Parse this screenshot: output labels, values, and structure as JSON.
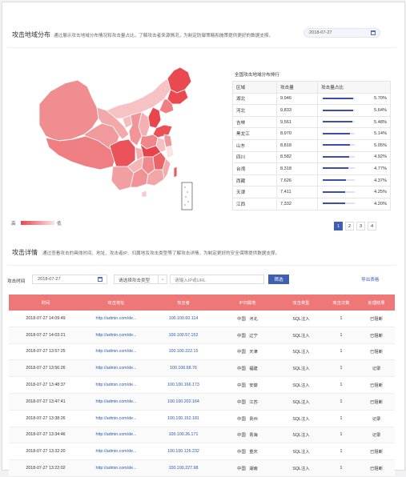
{
  "region_section": {
    "title": "攻击地域分布",
    "desc": "通过展示攻击地域分布情况和攻击量占比，了解攻击者来源情况，为制定防御策略和施策提供更好的数据支撑。",
    "date": "2018-07-27",
    "legend_high": "高",
    "legend_low": "低",
    "rank_title": "全国攻击地域分布排行",
    "columns": [
      "区域",
      "攻击量",
      "攻击量占比"
    ],
    "rows": [
      {
        "region": "湖北",
        "count": "9,946",
        "pct": "5.70%",
        "share": 0.057
      },
      {
        "region": "河北",
        "count": "9,833",
        "pct": "5.64%",
        "share": 0.0564
      },
      {
        "region": "吉林",
        "count": "9,561",
        "pct": "5.48%",
        "share": 0.0548
      },
      {
        "region": "黑龙江",
        "count": "8,970",
        "pct": "5.14%",
        "share": 0.0514
      },
      {
        "region": "山东",
        "count": "8,818",
        "pct": "5.05%",
        "share": 0.0505
      },
      {
        "region": "四川",
        "count": "8,582",
        "pct": "4.92%",
        "share": 0.0492
      },
      {
        "region": "台湾",
        "count": "8,318",
        "pct": "4.77%",
        "share": 0.0477
      },
      {
        "region": "西藏",
        "count": "7,626",
        "pct": "4.37%",
        "share": 0.0437
      },
      {
        "region": "天津",
        "count": "7,411",
        "pct": "4.25%",
        "share": 0.0425
      },
      {
        "region": "江西",
        "count": "7,332",
        "pct": "4.20%",
        "share": 0.042
      }
    ],
    "pages": [
      "1",
      "2",
      "3",
      "4"
    ],
    "active_page": "1",
    "colors": {
      "high": "#e8434a",
      "low": "#fbe4e5",
      "accent": "#3f5fb5"
    }
  },
  "detail_section": {
    "title": "攻击详情",
    "desc": "通过查看攻击的具体时间、地址、攻击者IP、归属地及攻击类型等了解攻击详情，为制定更好的安全保障提供数据支撑。",
    "filter_label": "攻击时间",
    "date": "2018-07-27",
    "type_placeholder": "请选择攻击类型",
    "ip_placeholder": "请输入IP或URL",
    "filter_button": "筛选",
    "export_label": "导出表格",
    "columns": [
      "时间",
      "攻击地址",
      "攻击者",
      "IP归属地",
      "攻击类型",
      "攻击次数",
      "处理结果"
    ],
    "rows": [
      {
        "time": "2018-07-27 14:09:49",
        "url": "http://admin.com/de...",
        "ip": "100.100.60.114",
        "country": "中国",
        "province": "河北",
        "type": "SQL注入",
        "times": "1",
        "result": "已阻断"
      },
      {
        "time": "2018-07-27 14:03:21",
        "url": "http://admin.com/de...",
        "ip": "100.100.57.152",
        "country": "中国",
        "province": "辽宁",
        "type": "SQL注入",
        "times": "1",
        "result": "已阻断"
      },
      {
        "time": "2018-07-27 13:57:25",
        "url": "http://admin.com/de...",
        "ip": "100.100.222.15",
        "country": "中国",
        "province": "天津",
        "type": "SQL注入",
        "times": "1",
        "result": "已阻断"
      },
      {
        "time": "2018-07-27 13:56:26",
        "url": "http://admin.com/de...",
        "ip": "100.100.68.76",
        "country": "中国",
        "province": "福建",
        "type": "SQL注入",
        "times": "1",
        "result": "记录"
      },
      {
        "time": "2018-07-27 13:48:37",
        "url": "http://admin.com/de...",
        "ip": "100.100.166.173",
        "country": "中国",
        "province": "安徽",
        "type": "SQL注入",
        "times": "1",
        "result": "已阻断"
      },
      {
        "time": "2018-07-27 13:47:41",
        "url": "http://admin.com/de...",
        "ip": "100.100.202.164",
        "country": "中国",
        "province": "江苏",
        "type": "SQL注入",
        "times": "1",
        "result": "已阻断"
      },
      {
        "time": "2018-07-27 13:38:26",
        "url": "http://admin.com/de...",
        "ip": "100.100.152.181",
        "country": "中国",
        "province": "贵州",
        "type": "SQL注入",
        "times": "1",
        "result": "记录"
      },
      {
        "time": "2018-07-27 13:34:46",
        "url": "http://admin.com/de...",
        "ip": "100.100.26.171",
        "country": "中国",
        "province": "青海",
        "type": "SQL注入",
        "times": "1",
        "result": "记录"
      },
      {
        "time": "2018-07-27 13:32:20",
        "url": "http://admin.com/de...",
        "ip": "100.100.126.232",
        "country": "中国",
        "province": "重庆",
        "type": "SQL注入",
        "times": "1",
        "result": "已阻断"
      },
      {
        "time": "2018-07-27 13:22:02",
        "url": "http://admin.com/de...",
        "ip": "100.100.227.98",
        "country": "中国",
        "province": "湖南",
        "type": "SQL注入",
        "times": "1",
        "result": "已阻断"
      }
    ]
  }
}
